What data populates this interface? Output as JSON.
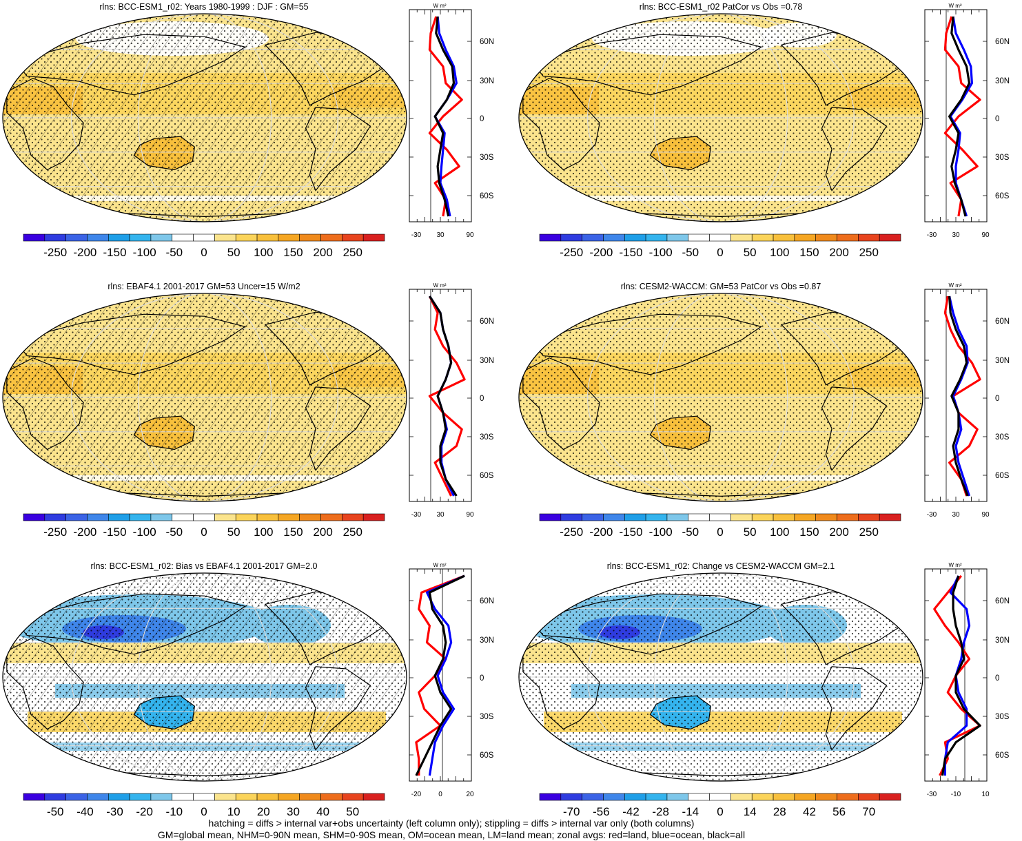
{
  "panels": [
    {
      "id": "p1",
      "title": "rlns: BCC-ESM1_r02: Years 1980-1999 : DJF : GM=55",
      "kind": "clim",
      "hatched": true,
      "colorbar": {
        "labels": [
          "-250",
          "-200",
          "-150",
          "-100",
          "-50",
          "0",
          "50",
          "100",
          "150",
          "200",
          "250"
        ]
      },
      "zonal": {
        "units_label": "W m²",
        "x_ticks": [
          "-30",
          "30",
          "90"
        ],
        "y_ticks": [
          "60N",
          "30N",
          "0",
          "30S",
          "60S"
        ]
      }
    },
    {
      "id": "p2",
      "title": "rlns: BCC-ESM1_r02 PatCor vs Obs =0.78",
      "kind": "clim",
      "hatched": false,
      "colorbar": {
        "labels": [
          "-250",
          "-200",
          "-150",
          "-100",
          "-50",
          "0",
          "50",
          "100",
          "150",
          "200",
          "250"
        ]
      },
      "zonal": {
        "units_label": "W m²",
        "x_ticks": [
          "-30",
          "30",
          "90"
        ],
        "y_ticks": [
          "60N",
          "30N",
          "0",
          "30S",
          "60S"
        ]
      }
    },
    {
      "id": "p3",
      "title": "rlns: EBAF4.1 2001-2017 GM=53 Uncer=15 W/m2",
      "kind": "clim",
      "hatched": true,
      "colorbar": {
        "labels": [
          "-250",
          "-200",
          "-150",
          "-100",
          "-50",
          "0",
          "50",
          "100",
          "150",
          "200",
          "250"
        ]
      },
      "zonal": {
        "units_label": "W m²",
        "x_ticks": [
          "-30",
          "30",
          "90"
        ],
        "y_ticks": [
          "60N",
          "30N",
          "0",
          "30S",
          "60S"
        ]
      }
    },
    {
      "id": "p4",
      "title": "rlns: CESM2-WACCM: GM=53 PatCor vs Obs =0.87",
      "kind": "clim",
      "hatched": false,
      "colorbar": {
        "labels": [
          "-250",
          "-200",
          "-150",
          "-100",
          "-50",
          "0",
          "50",
          "100",
          "150",
          "200",
          "250"
        ]
      },
      "zonal": {
        "units_label": "W m²",
        "x_ticks": [
          "-30",
          "30",
          "90"
        ],
        "y_ticks": [
          "60N",
          "30N",
          "0",
          "30S",
          "60S"
        ]
      }
    },
    {
      "id": "p5",
      "title": "rlns: BCC-ESM1_r02: Bias vs EBAF4.1 2001-2017 GM=2.0",
      "kind": "diff",
      "hatched": true,
      "colorbar": {
        "labels": [
          "-50",
          "-40",
          "-30",
          "-20",
          "-10",
          "0",
          "10",
          "20",
          "30",
          "40",
          "50"
        ]
      },
      "zonal": {
        "units_label": "W m²",
        "x_ticks": [
          "-20",
          "0",
          "20"
        ],
        "y_ticks": [
          "60N",
          "30N",
          "0",
          "30S",
          "60S"
        ]
      }
    },
    {
      "id": "p6",
      "title": "rlns: BCC-ESM1_r02: Change vs CESM2-WACCM GM=2.1",
      "kind": "diff",
      "hatched": false,
      "colorbar": {
        "labels": [
          "-70",
          "-56",
          "-42",
          "-28",
          "-14",
          "0",
          "14",
          "28",
          "42",
          "56",
          "70"
        ]
      },
      "zonal": {
        "units_label": "W m²",
        "x_ticks": [
          "-30",
          "-10",
          "10"
        ],
        "y_ticks": [
          "60N",
          "30N",
          "0",
          "30S",
          "60S"
        ]
      }
    }
  ],
  "colors": {
    "scale": [
      "#3a00e0",
      "#2f3ce0",
      "#3b63e6",
      "#3f86ea",
      "#1f9fe8",
      "#34b4ee",
      "#7ec7ea",
      "#ffffff",
      "#ffffff",
      "#fbe48d",
      "#fbd45a",
      "#f8c03c",
      "#f5a623",
      "#f08a1c",
      "#ee6d1c",
      "#e8441e",
      "#d9201f"
    ],
    "land_zonal": "#ff0000",
    "ocean_zonal": "#0000ff",
    "all_zonal": "#000000"
  },
  "footer": {
    "line1": "hatching = diffs > internal var+obs uncertainty (left column only); stippling = diffs > internal var only (both columns)",
    "line2": "GM=global mean, NHM=0-90N mean, SHM=0-90S mean, OM=ocean mean, LM=land mean; zonal avgs: red=land, blue=ocean, black=all"
  }
}
